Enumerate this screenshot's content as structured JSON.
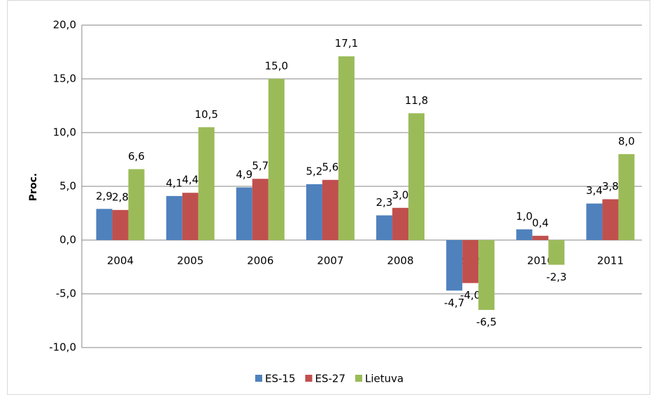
{
  "chart_data": {
    "type": "bar",
    "y_label": "Proc.",
    "categories": [
      "2004",
      "2005",
      "2006",
      "2007",
      "2008",
      "2009",
      "2010",
      "2011"
    ],
    "series": [
      {
        "name": "ES-15",
        "color": "#4f81bd",
        "values": [
          2.9,
          4.1,
          4.9,
          5.2,
          2.3,
          -4.7,
          1.0,
          3.4
        ],
        "value_labels": [
          "2,9",
          "4,1",
          "4,9",
          "5,2",
          "2,3",
          "-4,7",
          "1,0",
          "3,4"
        ]
      },
      {
        "name": "ES-27",
        "color": "#c0504d",
        "values": [
          2.8,
          4.4,
          5.7,
          5.6,
          3.0,
          -4.0,
          0.4,
          3.8
        ],
        "value_labels": [
          "2,8",
          "4,4",
          "5,7",
          "5,6",
          "3,0",
          "-4,0",
          "0,4",
          "3,8"
        ]
      },
      {
        "name": "Lietuva",
        "color": "#9bbb59",
        "values": [
          6.6,
          10.5,
          15.0,
          17.1,
          11.8,
          -6.5,
          -2.3,
          8.0
        ],
        "value_labels": [
          "6,6",
          "10,5",
          "15,0",
          "17,1",
          "11,8",
          "-6,5",
          "-2,3",
          "8,0"
        ]
      }
    ],
    "ylim": [
      -10,
      20
    ],
    "yticks": [
      {
        "value": -10,
        "label": "-10,0"
      },
      {
        "value": -5,
        "label": "-5,0"
      },
      {
        "value": 0,
        "label": "0,0"
      },
      {
        "value": 5,
        "label": "5,0"
      },
      {
        "value": 10,
        "label": "10,0"
      },
      {
        "value": 15,
        "label": "15,0"
      },
      {
        "value": 20,
        "label": "20,0"
      }
    ],
    "grid": true,
    "legend": "bottom"
  }
}
